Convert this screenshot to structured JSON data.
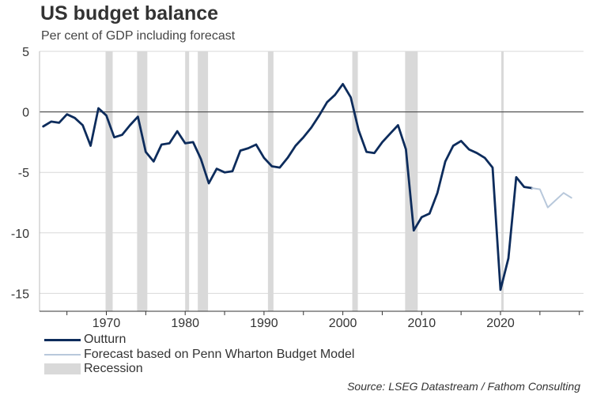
{
  "header": {
    "title": "US budget balance",
    "subtitle": "Per cent of GDP including forecast"
  },
  "legend": {
    "outturn": "Outturn",
    "forecast": "Forecast based on Penn Wharton Budget Model",
    "recession": "Recession"
  },
  "source": "Source: LSEG Datastream / Fathom Consulting",
  "colors": {
    "outturn": "#0d2c5c",
    "forecast": "#b8c8db",
    "recession": "#d9d9d9",
    "grid": "#d9d9d9",
    "zero": "#555555"
  },
  "chart_data": {
    "type": "line",
    "title": "US budget balance",
    "subtitle": "Per cent of GDP including forecast",
    "xlabel": "",
    "ylabel": "",
    "xlim": [
      1962,
      2030
    ],
    "ylim": [
      -16,
      5
    ],
    "yticks": [
      5,
      0,
      -5,
      -10,
      -15
    ],
    "xticks": [
      1970,
      1980,
      1990,
      2000,
      2010,
      2020
    ],
    "grid": true,
    "recessions": [
      [
        1969.9,
        1970.8
      ],
      [
        1973.9,
        1975.2
      ],
      [
        1980.0,
        1980.5
      ],
      [
        1981.6,
        1982.9
      ],
      [
        1990.5,
        1991.2
      ],
      [
        2001.2,
        2001.9
      ],
      [
        2007.9,
        2009.5
      ],
      [
        2020.1,
        2020.4
      ]
    ],
    "series": [
      {
        "name": "Outturn",
        "x": [
          1962,
          1963,
          1964,
          1965,
          1966,
          1967,
          1968,
          1969,
          1970,
          1971,
          1972,
          1973,
          1974,
          1975,
          1976,
          1977,
          1978,
          1979,
          1980,
          1981,
          1982,
          1983,
          1984,
          1985,
          1986,
          1987,
          1988,
          1989,
          1990,
          1991,
          1992,
          1993,
          1994,
          1995,
          1996,
          1997,
          1998,
          1999,
          2000,
          2001,
          2002,
          2003,
          2004,
          2005,
          2006,
          2007,
          2008,
          2009,
          2010,
          2011,
          2012,
          2013,
          2014,
          2015,
          2016,
          2017,
          2018,
          2019,
          2020,
          2021,
          2022,
          2023,
          2024
        ],
        "values": [
          -1.2,
          -0.8,
          -0.9,
          -0.2,
          -0.5,
          -1.1,
          -2.8,
          0.3,
          -0.3,
          -2.1,
          -1.9,
          -1.1,
          -0.4,
          -3.3,
          -4.1,
          -2.7,
          -2.6,
          -1.6,
          -2.6,
          -2.5,
          -3.9,
          -5.9,
          -4.7,
          -5.0,
          -4.9,
          -3.2,
          -3.0,
          -2.7,
          -3.8,
          -4.5,
          -4.6,
          -3.8,
          -2.8,
          -2.1,
          -1.3,
          -0.3,
          0.8,
          1.4,
          2.3,
          1.2,
          -1.5,
          -3.3,
          -3.4,
          -2.5,
          -1.8,
          -1.1,
          -3.1,
          -9.8,
          -8.7,
          -8.4,
          -6.7,
          -4.1,
          -2.8,
          -2.4,
          -3.1,
          -3.4,
          -3.8,
          -4.6,
          -14.7,
          -12.1,
          -5.4,
          -6.2,
          -6.3
        ]
      },
      {
        "name": "Forecast based on Penn Wharton Budget Model",
        "x": [
          2024,
          2025,
          2026,
          2027,
          2028,
          2029
        ],
        "values": [
          -6.3,
          -6.4,
          -7.9,
          -7.3,
          -6.7,
          -7.1
        ]
      }
    ]
  }
}
